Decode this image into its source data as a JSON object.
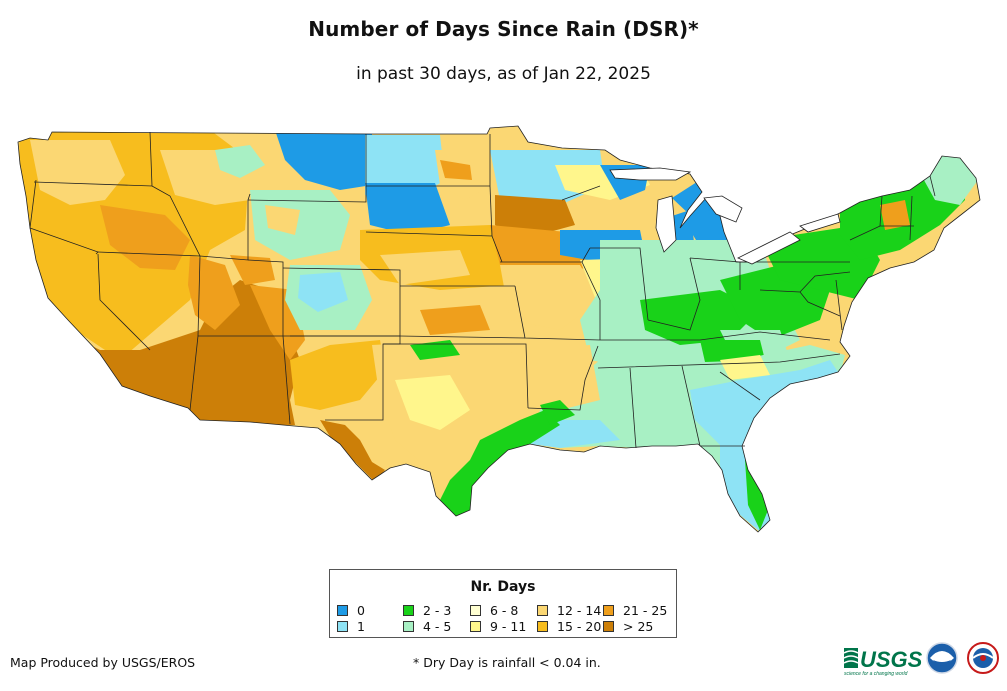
{
  "title": "Number of Days Since Rain (DSR)*",
  "subtitle": "in past 30 days, as of Jan 22, 2025",
  "legend": {
    "title": "Nr. Days",
    "items": [
      {
        "label": "0",
        "color": "#1e9be6"
      },
      {
        "label": "1",
        "color": "#8ee3f5"
      },
      {
        "label": "2 - 3",
        "color": "#19d219"
      },
      {
        "label": "4 - 5",
        "color": "#a8f0c4"
      },
      {
        "label": "6 - 8",
        "color": "#ffffd2"
      },
      {
        "label": "9 - 11",
        "color": "#fff68c"
      },
      {
        "label": "12 - 14",
        "color": "#fbd773"
      },
      {
        "label": "15 - 20",
        "color": "#f7bd1e"
      },
      {
        "label": "21 - 25",
        "color": "#ef9f1c"
      },
      {
        "label": "> 25",
        "color": "#cc7f08"
      }
    ]
  },
  "footer": {
    "producer": "Map Produced by USGS/EROS",
    "footnote": "* Dry Day is rainfall < 0.04 in."
  },
  "logos": [
    {
      "name": "usgs-logo",
      "text": "USGS",
      "tagline": "science for a changing world"
    },
    {
      "name": "noaa-logo",
      "text": "NOAA"
    },
    {
      "name": "nws-logo",
      "text": "NWS"
    }
  ]
}
